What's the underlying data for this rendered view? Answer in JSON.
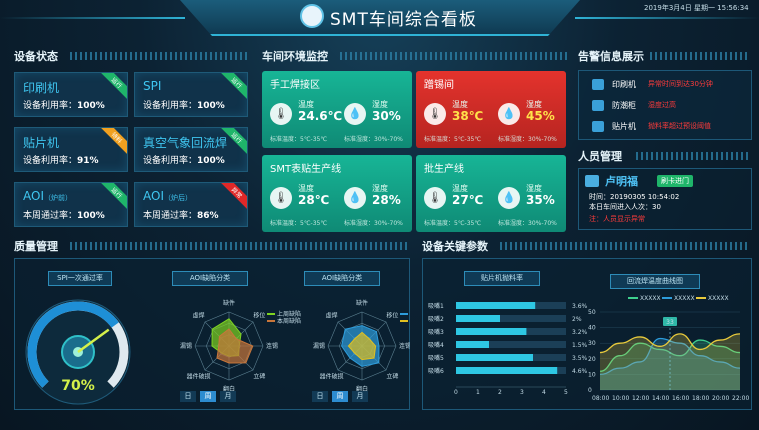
{
  "header": {
    "title": "SMT车间综合看板",
    "clock": "2019年3月4日 星期一 15:56:34"
  },
  "sections": {
    "devices": "设备状态",
    "env": "车间环境监控",
    "alerts": "告警信息展示",
    "personnel": "人员管理",
    "quality": "质量管理",
    "params": "设备关键参数"
  },
  "devices": [
    {
      "name": "印刷机",
      "suffix": "",
      "rate_label": "设备利用率：",
      "rate": "100%",
      "status": "运行",
      "color": "#1fb56a"
    },
    {
      "name": "SPI",
      "suffix": "",
      "rate_label": "设备利用率：",
      "rate": "100%",
      "status": "运行",
      "color": "#1fb56a"
    },
    {
      "name": "贴片机",
      "suffix": "",
      "rate_label": "设备利用率：",
      "rate": "91%",
      "status": "待料",
      "color": "#f0a020"
    },
    {
      "name": "真空气象回流焊",
      "suffix": "",
      "rate_label": "设备利用率：",
      "rate": "100%",
      "status": "运行",
      "color": "#1fb56a"
    },
    {
      "name": "AOI",
      "suffix": "（炉前）",
      "rate_label": "本周通过率：",
      "rate": "100%",
      "status": "运行",
      "color": "#1fb56a"
    },
    {
      "name": "AOI",
      "suffix": "（炉后）",
      "rate_label": "本周通过率：",
      "rate": "86%",
      "status": "异常",
      "color": "#e02828"
    }
  ],
  "env": [
    {
      "title": "手工焊接区",
      "temp_label": "温度",
      "temp": "24.6℃",
      "hum_label": "湿度",
      "hum": "30%",
      "temp_std": "标准温度：5℃-35℃",
      "hum_std": "标准湿度：30%-70%",
      "bg": "#17b596",
      "alert": false
    },
    {
      "title": "蹭锡间",
      "temp_label": "温度",
      "temp": "38℃",
      "hum_label": "湿度",
      "hum": "45%",
      "temp_std": "标准温度：5℃-35℃",
      "hum_std": "标准湿度：30%-70%",
      "bg": "#e4332d",
      "alert": true
    },
    {
      "title": "SMT表贴生产线",
      "temp_label": "温度",
      "temp": "28℃",
      "hum_label": "湿度",
      "hum": "28%",
      "temp_std": "标准温度：5℃-35℃",
      "hum_std": "标准湿度：30%-70%",
      "bg": "#17b596",
      "alert": false
    },
    {
      "title": "批生产线",
      "temp_label": "温度",
      "temp": "27℃",
      "hum_label": "湿度",
      "hum": "35%",
      "temp_std": "标准温度：5℃-35℃",
      "hum_std": "标准湿度：30%-70%",
      "bg": "#17b596",
      "alert": false
    }
  ],
  "alerts": [
    {
      "device": "印刷机",
      "message": "异常时间到达30分钟"
    },
    {
      "device": "防潮柜",
      "message": "湿度过高"
    },
    {
      "device": "贴片机",
      "message": "抛料率超过预设阈值"
    }
  ],
  "person": {
    "name": "卢明福",
    "badge": "刷卡进门",
    "time_label": "时间：",
    "time": "20190305 10:54:02",
    "count_label": "本日车间进入人次：",
    "count": "30",
    "note": "注：人员显示异常"
  },
  "quality": {
    "spi_title": "SPI一次通过率",
    "spi_value": "70%",
    "aoi1_title": "AOI缺陷分类",
    "aoi2_title": "AOI缺陷分类",
    "legend1": [
      "上周缺陷",
      "本周缺陷"
    ],
    "legend2": [
      "上周缺陷",
      "本周缺陷"
    ],
    "axes": [
      "缺件",
      "移位",
      "连锡",
      "立碑",
      "翻白",
      "器件破损",
      "漏锡",
      "虚焊"
    ],
    "tabs": [
      "日",
      "周",
      "月"
    ]
  },
  "params": {
    "throw_title": "贴片机抛料率",
    "reflow_title": "回流焊温度曲线图",
    "legend": [
      "XXXXX",
      "XXXXX",
      "XXXXX"
    ],
    "marker": "33"
  },
  "chart_data": [
    {
      "type": "gauge",
      "title": "SPI一次通过率",
      "value": 70,
      "unit": "%"
    },
    {
      "type": "radar",
      "title": "AOI缺陷分类",
      "axes": [
        "缺件",
        "移位",
        "连锡",
        "立碑",
        "翻白",
        "器件破损",
        "漏锡",
        "虚焊"
      ],
      "series": [
        {
          "name": "上周缺陷",
          "values": [
            0.8,
            0.5,
            0.3,
            0.4,
            0.3,
            0.3,
            0.5,
            0.7
          ],
          "color": "#7ed321"
        },
        {
          "name": "本周缺陷",
          "values": [
            0.5,
            0.3,
            0.7,
            0.7,
            0.5,
            0.5,
            0.3,
            0.4
          ],
          "color": "#c8763a"
        }
      ]
    },
    {
      "type": "radar",
      "title": "AOI缺陷分类",
      "axes": [
        "缺件",
        "移位",
        "连锡",
        "立碑",
        "翻白",
        "器件破损",
        "漏锡",
        "虚焊"
      ],
      "series": [
        {
          "name": "上周缺陷",
          "values": [
            0.6,
            0.6,
            0.5,
            0.7,
            0.6,
            0.5,
            0.6,
            0.7
          ],
          "color": "#2d9cdb"
        },
        {
          "name": "本周缺陷",
          "values": [
            0.4,
            0.3,
            0.4,
            0.5,
            0.4,
            0.3,
            0.4,
            0.3
          ],
          "color": "#e0c020"
        }
      ]
    },
    {
      "type": "bar",
      "title": "贴片机抛料率",
      "categories": [
        "吸嘴1",
        "吸嘴2",
        "吸嘴3",
        "吸嘴4",
        "吸嘴5",
        "吸嘴6"
      ],
      "values": [
        3.6,
        2,
        3.2,
        1.5,
        3.5,
        4.6
      ],
      "labels": [
        "3.6%",
        "2%",
        "3.2%",
        "1.5%",
        "3.5%",
        "4.6%"
      ],
      "xlim": [
        0,
        5
      ],
      "xticks": [
        "0",
        "1",
        "2",
        "3",
        "4",
        "5"
      ]
    },
    {
      "type": "area",
      "title": "回流焊温度曲线图",
      "x": [
        "08:00",
        "10:00",
        "12:00",
        "14:00",
        "16:00",
        "18:00",
        "20:00",
        "22:00"
      ],
      "ylim": [
        0,
        50
      ],
      "yticks": [
        "0",
        "10",
        "20",
        "30",
        "40",
        "50"
      ],
      "series": [
        {
          "name": "XXXXX",
          "color": "#3ecf8e",
          "values": [
            12,
            22,
            30,
            26,
            22,
            32,
            28,
            24
          ]
        },
        {
          "name": "XXXXX",
          "color": "#2d9cdb",
          "values": [
            10,
            14,
            18,
            33,
            30,
            22,
            18,
            14
          ]
        },
        {
          "name": "XXXXX",
          "color": "#e7c93c",
          "values": [
            24,
            30,
            34,
            28,
            36,
            26,
            32,
            36
          ]
        }
      ]
    }
  ]
}
